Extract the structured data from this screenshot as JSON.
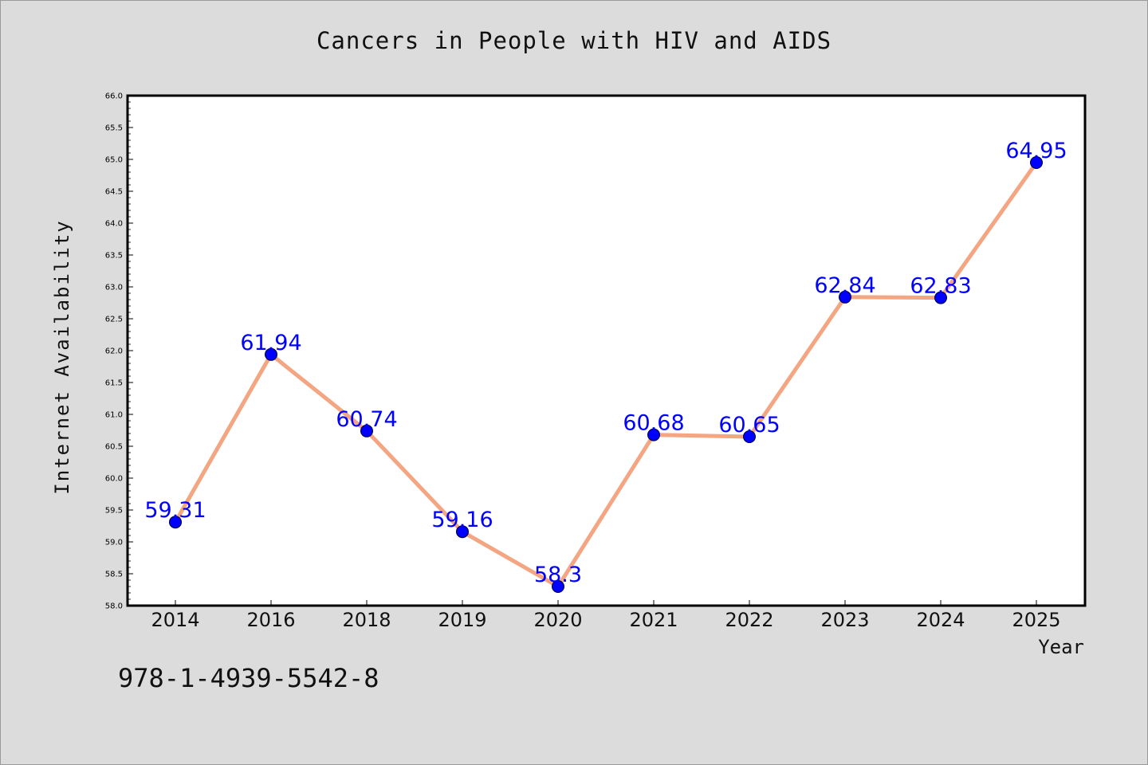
{
  "chart_data": {
    "type": "line",
    "title": "Cancers in People with HIV and AIDS",
    "xlabel": "Year",
    "ylabel": "Internet Availability",
    "categories": [
      "2014",
      "2016",
      "2018",
      "2019",
      "2020",
      "2021",
      "2022",
      "2023",
      "2024",
      "2025"
    ],
    "series": [
      {
        "values": [
          59.31,
          61.94,
          60.74,
          59.16,
          58.3,
          60.68,
          60.65,
          62.84,
          62.83,
          64.95
        ],
        "data_labels": [
          "59.31",
          "61.94",
          "60.74",
          "59.16",
          "58.3",
          "60.68",
          "60.65",
          "62.84",
          "62.83",
          "64.95"
        ]
      }
    ],
    "ylim": [
      58.0,
      66.0
    ],
    "y_ticks": [
      "58.0",
      "58.5",
      "59.0",
      "59.5",
      "60.0",
      "60.5",
      "61.0",
      "61.5",
      "62.0",
      "62.5",
      "63.0",
      "63.5",
      "64.0",
      "64.5",
      "65.0",
      "65.5",
      "66.0"
    ],
    "grid": false,
    "colors": {
      "line": "#f4a582",
      "marker": "#0000ff",
      "label": "#0000ff",
      "plot_background": "#ffffff",
      "figure_background": "#dcdcdc"
    }
  },
  "footer": {
    "isbn": "978-1-4939-5542-8"
  }
}
